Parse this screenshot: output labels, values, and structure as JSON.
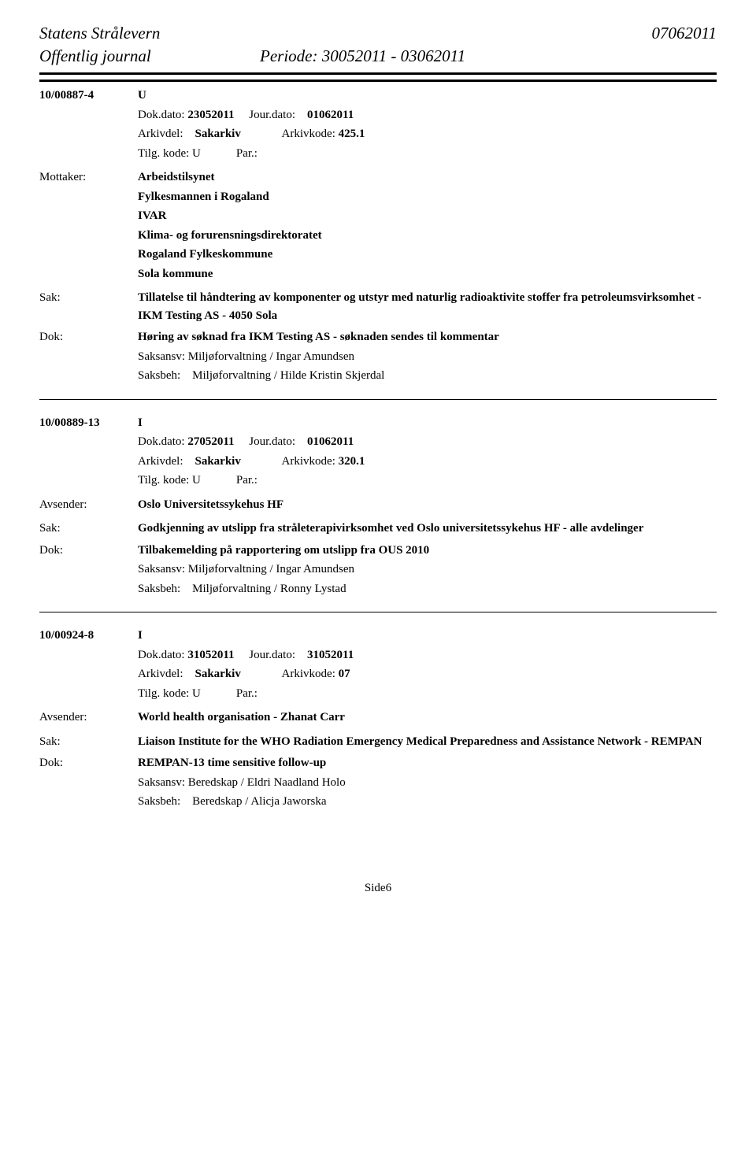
{
  "header": {
    "org_name": "Statens Strålevern",
    "date_code": "07062011",
    "journal_title": "Offentlig journal",
    "periode_label": "Periode:",
    "periode_value": "30052011 - 03062011"
  },
  "labels": {
    "mottaker": "Mottaker:",
    "avsender": "Avsender:",
    "sak": "Sak:",
    "dok": "Dok:",
    "dokdato": "Dok.dato:",
    "jourdato": "Jour.dato:",
    "arkivdel": "Arkivdel:",
    "arkivkode": "Arkivkode:",
    "tilgkode": "Tilg. kode:",
    "par": "Par.:",
    "saksansv": "Saksansv:",
    "saksbeh": "Saksbeh:"
  },
  "records": [
    {
      "case_ref": "10/00887-4",
      "direction": "U",
      "dokdato": "23052011",
      "jourdato": "01062011",
      "arkivdel": "Sakarkiv",
      "arkivkode": "425.1",
      "tilgkode": "U",
      "par": "",
      "party_type": "mottaker",
      "parties": [
        "Arbeidstilsynet",
        "Fylkesmannen i Rogaland",
        "IVAR",
        "Klima- og forurensningsdirektoratet",
        "Rogaland Fylkeskommune",
        "Sola kommune"
      ],
      "sak": "Tillatelse til håndtering av komponenter og utstyr med naturlig radioaktivite stoffer fra petroleumsvirksomhet - IKM Testing AS - 4050 Sola",
      "dok": "Høring av søknad fra IKM Testing AS - søknaden sendes til kommentar",
      "saksansv": "Miljøforvaltning / Ingar Amundsen",
      "saksbeh": "Miljøforvaltning / Hilde Kristin Skjerdal"
    },
    {
      "case_ref": "10/00889-13",
      "direction": "I",
      "dokdato": "27052011",
      "jourdato": "01062011",
      "arkivdel": "Sakarkiv",
      "arkivkode": "320.1",
      "tilgkode": "U",
      "par": "",
      "party_type": "avsender",
      "parties": [
        "Oslo Universitetssykehus HF"
      ],
      "sak": "Godkjenning av utslipp fra stråleterapivirksomhet ved Oslo universitetssykehus HF - alle avdelinger",
      "dok": "Tilbakemelding på rapportering om utslipp fra OUS 2010",
      "saksansv": "Miljøforvaltning / Ingar Amundsen",
      "saksbeh": "Miljøforvaltning / Ronny Lystad"
    },
    {
      "case_ref": "10/00924-8",
      "direction": "I",
      "dokdato": "31052011",
      "jourdato": "31052011",
      "arkivdel": "Sakarkiv",
      "arkivkode": "07",
      "tilgkode": "U",
      "par": "",
      "party_type": "avsender",
      "parties": [
        "World health organisation - Zhanat Carr"
      ],
      "sak": "Liaison Institute for the WHO Radiation Emergency Medical Preparedness and Assistance Network - REMPAN",
      "dok": "REMPAN-13 time sensitive follow-up",
      "saksansv": "Beredskap / Eldri Naadland Holo",
      "saksbeh": "Beredskap / Alicja Jaworska"
    }
  ],
  "footer": {
    "page_label": "Side6"
  }
}
